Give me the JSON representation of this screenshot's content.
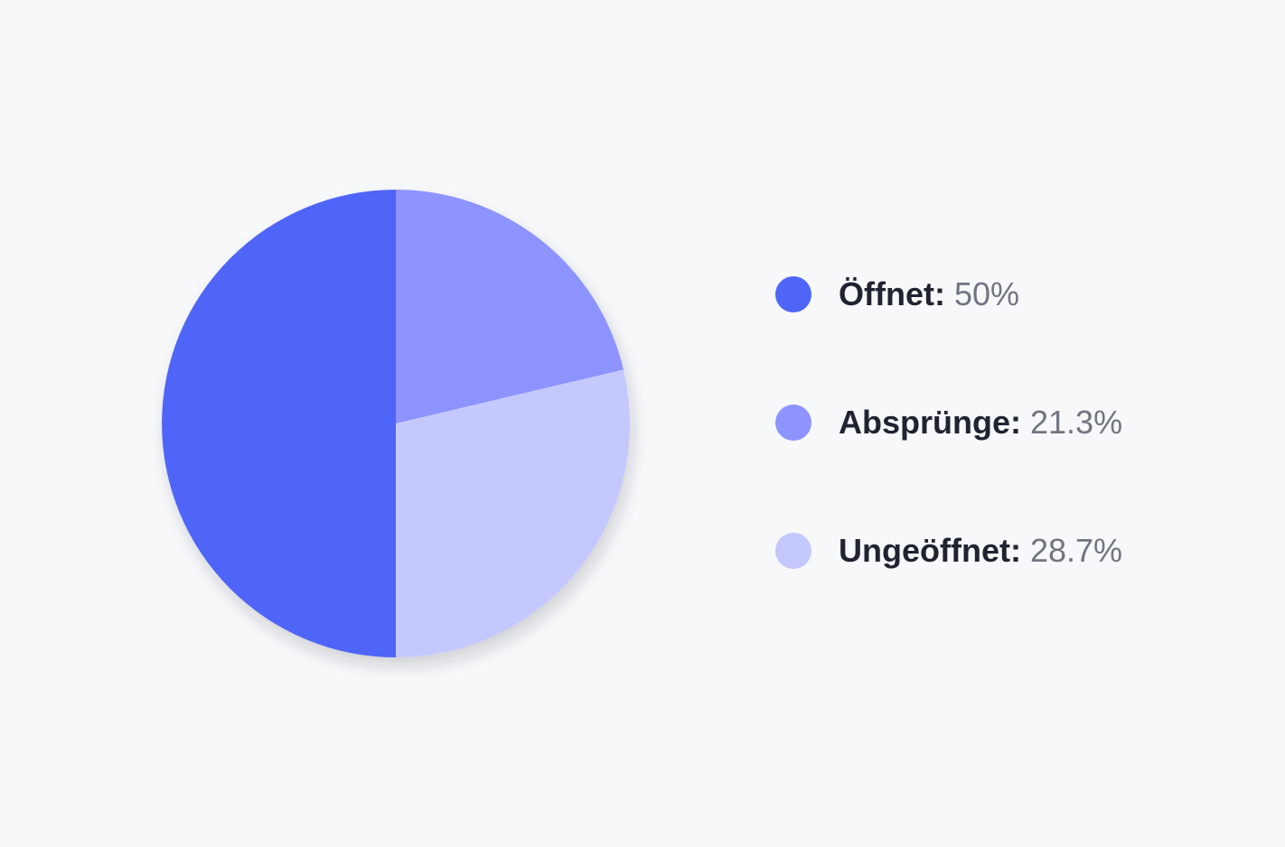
{
  "chart_data": {
    "type": "pie",
    "categories": [
      "Öffnet:",
      "Absprünge:",
      "Ungeöffnet:"
    ],
    "values": [
      50,
      21.3,
      28.7
    ],
    "value_labels": [
      "50%",
      "21.3%",
      "28.7%"
    ],
    "colors": [
      "#4f65f8",
      "#8d93ff",
      "#c4c8ff"
    ],
    "legend": {
      "position": "right",
      "items": [
        {
          "label": "Öffnet:",
          "value": "50%"
        },
        {
          "label": "Absprünge:",
          "value": "21.3%"
        },
        {
          "label": "Ungeöffnet:",
          "value": "28.7%"
        }
      ]
    },
    "title": "",
    "grid": false
  }
}
